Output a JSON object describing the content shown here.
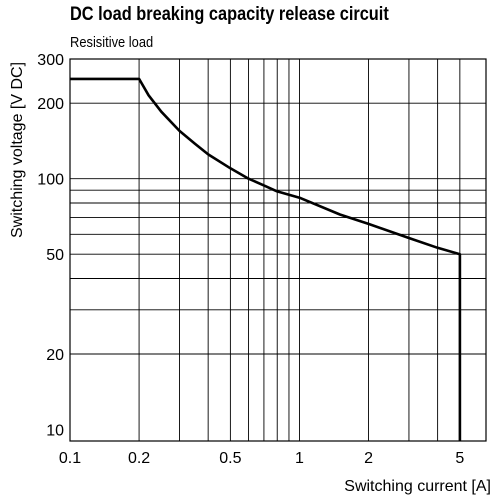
{
  "chart_data": {
    "type": "line",
    "title": "DC load breaking capacity release circuit",
    "subtitle": "Resisitive load",
    "xlabel": "Switching current [A]",
    "ylabel": "Switching voltage [V DC]",
    "x_scale": "log",
    "y_scale": "log",
    "xlim": [
      0.1,
      6.5
    ],
    "ylim": [
      9,
      300
    ],
    "grid": true,
    "x_ticks": [
      {
        "value": 0.1,
        "label": "0.1"
      },
      {
        "value": 0.2,
        "label": "0.2"
      },
      {
        "value": 0.5,
        "label": "0.5"
      },
      {
        "value": 1,
        "label": "1"
      },
      {
        "value": 2,
        "label": "2"
      },
      {
        "value": 5,
        "label": "5"
      }
    ],
    "y_ticks": [
      {
        "value": 300,
        "label": "300"
      },
      {
        "value": 200,
        "label": "200"
      },
      {
        "value": 100,
        "label": "100"
      },
      {
        "value": 50,
        "label": "50"
      },
      {
        "value": 20,
        "label": "20"
      },
      {
        "value": 10,
        "label": "10"
      }
    ],
    "x_grid": [
      0.2,
      0.3,
      0.4,
      0.5,
      0.6,
      0.7,
      0.8,
      0.9,
      1,
      2,
      3,
      4,
      5
    ],
    "y_grid": [
      20,
      30,
      40,
      50,
      60,
      70,
      80,
      90,
      100,
      200
    ],
    "series": [
      {
        "points": [
          [
            0.1,
            250
          ],
          [
            0.2,
            250
          ],
          [
            0.22,
            215
          ],
          [
            0.25,
            185
          ],
          [
            0.3,
            155
          ],
          [
            0.35,
            138
          ],
          [
            0.4,
            125
          ],
          [
            0.5,
            110
          ],
          [
            0.6,
            100
          ],
          [
            0.7,
            94
          ],
          [
            0.8,
            89
          ],
          [
            1,
            84
          ],
          [
            1.5,
            72
          ],
          [
            2,
            66
          ],
          [
            3,
            58
          ],
          [
            4,
            53
          ],
          [
            5,
            50
          ],
          [
            5,
            9
          ]
        ]
      }
    ]
  }
}
